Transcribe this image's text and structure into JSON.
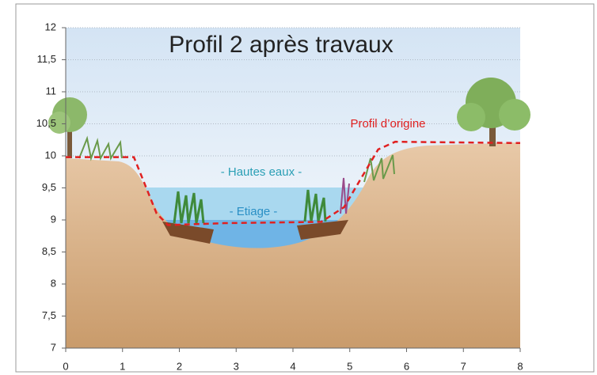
{
  "chart_data": {
    "type": "line",
    "title": "Profil 2 après travaux",
    "annotations": [
      "- Hautes eaux -",
      "- Etiage -"
    ],
    "series": [
      {
        "name": "Profil d’origine",
        "color": "#e02020",
        "x": [
          0,
          1.2,
          1.6,
          1.8,
          2.8,
          4.5,
          4.9,
          5.5,
          5.8,
          8
        ],
        "values": [
          9.98,
          9.98,
          9.1,
          8.92,
          8.95,
          8.97,
          9.2,
          10.1,
          10.22,
          10.2
        ]
      }
    ],
    "xlim": [
      0,
      8
    ],
    "xticks": [
      0,
      1,
      2,
      3,
      4,
      5,
      6,
      7,
      8
    ],
    "ylim": [
      7,
      12
    ],
    "yticks": [
      7,
      {
        "value": 7.5,
        "label": "7,5"
      },
      8,
      {
        "value": 8.5,
        "label": "8,5"
      },
      9,
      {
        "value": 9.5,
        "label": "9,5"
      },
      10,
      {
        "value": 10.5,
        "label": "10,5"
      },
      11,
      {
        "value": 11.5,
        "label": "11,5"
      },
      12
    ],
    "grid": true
  }
}
